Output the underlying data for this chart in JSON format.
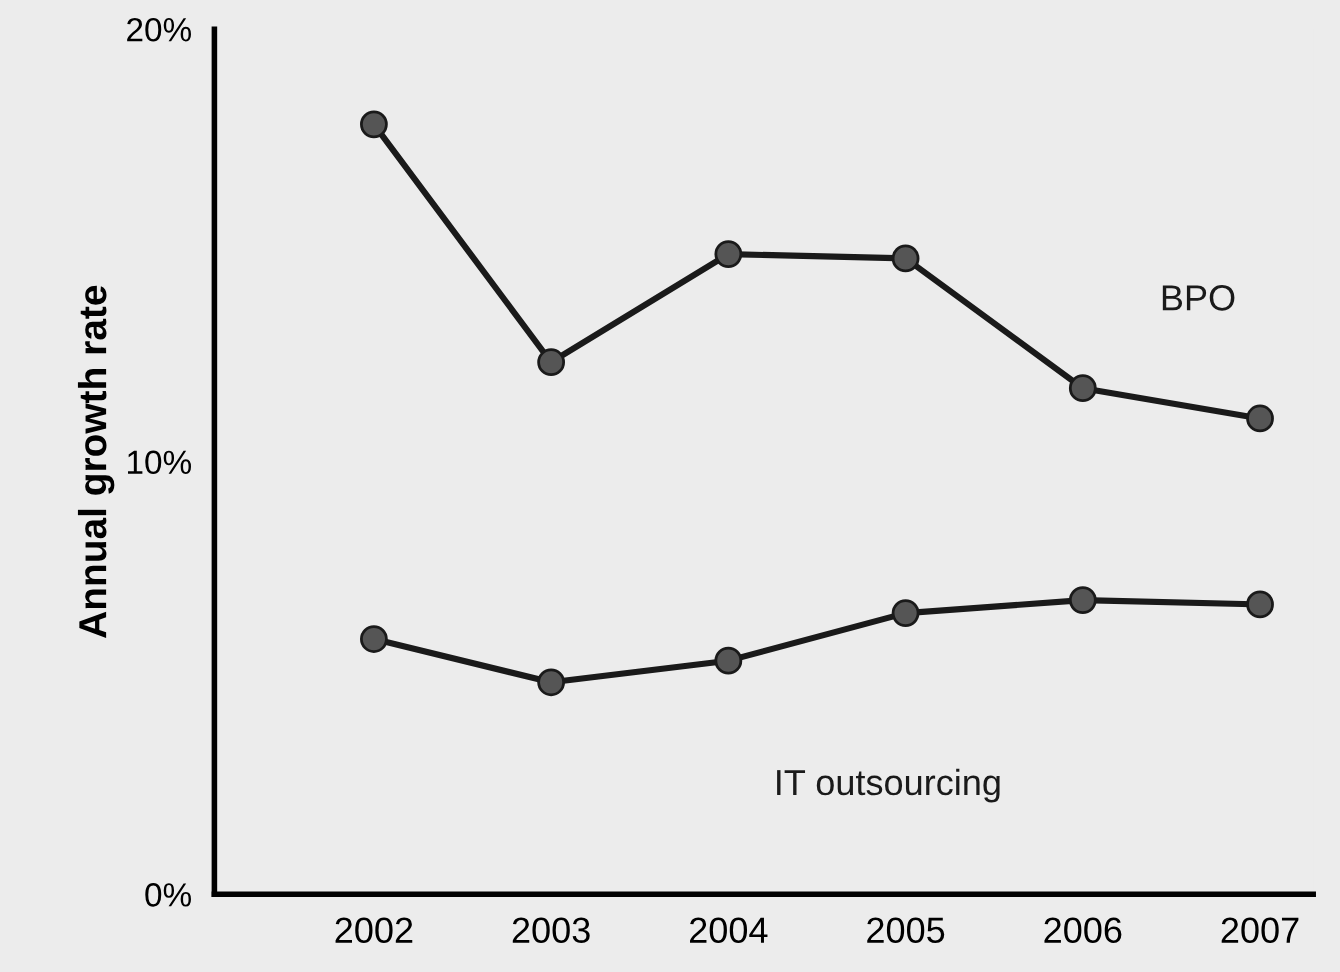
{
  "chart_data": {
    "type": "line",
    "ylabel": "Annual growth rate",
    "categories": [
      "2002",
      "2003",
      "2004",
      "2005",
      "2006",
      "2007"
    ],
    "series": [
      {
        "name": "BPO",
        "color": "#1a1a1a",
        "values": [
          17.8,
          12.3,
          14.8,
          14.7,
          11.7,
          11.0
        ]
      },
      {
        "name": "IT outsourcing",
        "color": "#1a1a1a",
        "values": [
          5.9,
          4.9,
          5.4,
          6.5,
          6.8,
          6.7
        ]
      }
    ],
    "ylim": [
      0,
      20
    ],
    "yticks": [
      {
        "value": 0,
        "label": "0%"
      },
      {
        "value": 10,
        "label": "10%"
      },
      {
        "value": 20,
        "label": "20%"
      }
    ],
    "marker": "circle",
    "line_style": "solid",
    "grid": false,
    "legend": false
  }
}
